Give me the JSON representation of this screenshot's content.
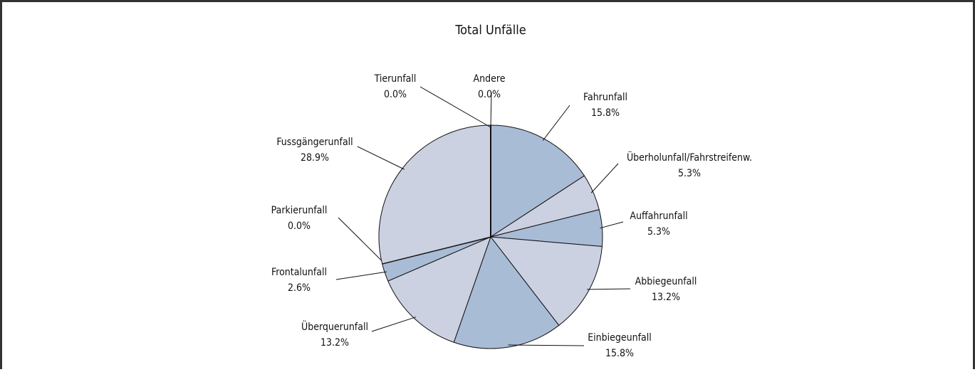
{
  "chart_data": {
    "type": "pie",
    "title": "Total Unfälle",
    "categories": [
      "Fahrunfall",
      "Überholunfall/Fahrstreifenw.",
      "Auffahrunfall",
      "Abbiegeunfall",
      "Einbiegeunfall",
      "Überquerunfall",
      "Frontalunfall",
      "Parkierunfall",
      "Fussgängerunfall",
      "Tierunfall",
      "Andere"
    ],
    "values": [
      15.8,
      5.3,
      5.3,
      13.2,
      15.8,
      13.2,
      2.6,
      0.0,
      28.9,
      0.0,
      0.0
    ],
    "value_labels": [
      "15.8%",
      "5.3%",
      "5.3%",
      "13.2%",
      "15.8%",
      "13.2%",
      "2.6%",
      "0.0%",
      "28.9%",
      "0.0%",
      "0.0%"
    ],
    "colors": [
      "#a9bcd6",
      "#cbd1e0",
      "#a9bcd6",
      "#cbd1e0",
      "#a9bcd6",
      "#cbd1e0",
      "#a9bcd6",
      "#cbd1e0",
      "#cbd1e0",
      "#a9bcd6",
      "#cbd1e0"
    ]
  }
}
